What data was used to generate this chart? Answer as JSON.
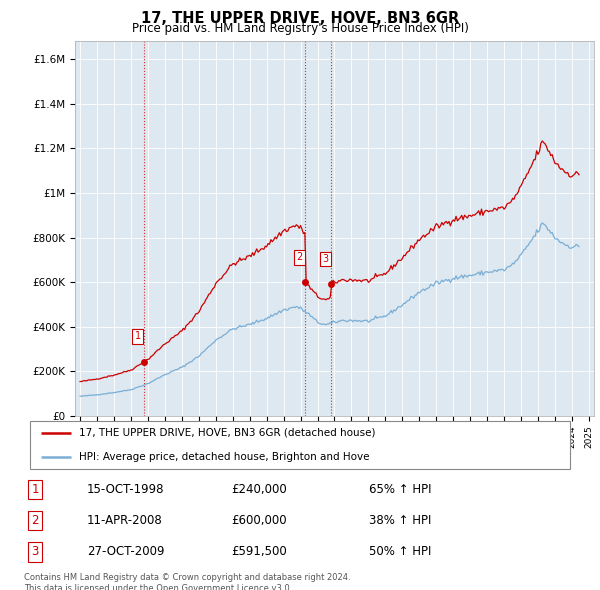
{
  "title": "17, THE UPPER DRIVE, HOVE, BN3 6GR",
  "subtitle": "Price paid vs. HM Land Registry's House Price Index (HPI)",
  "ylabel_ticks": [
    "£0",
    "£200K",
    "£400K",
    "£600K",
    "£800K",
    "£1M",
    "£1.2M",
    "£1.4M",
    "£1.6M"
  ],
  "ytick_values": [
    0,
    200000,
    400000,
    600000,
    800000,
    1000000,
    1200000,
    1400000,
    1600000
  ],
  "ylim": [
    0,
    1680000
  ],
  "xlim_start": 1994.7,
  "xlim_end": 2025.3,
  "transactions": [
    {
      "num": 1,
      "date_str": "15-OCT-1998",
      "price": 240000,
      "hpi_pct": "65% ↑ HPI",
      "x": 1998.79
    },
    {
      "num": 2,
      "date_str": "11-APR-2008",
      "price": 600000,
      "hpi_pct": "38% ↑ HPI",
      "x": 2008.28
    },
    {
      "num": 3,
      "date_str": "27-OCT-2009",
      "price": 591500,
      "hpi_pct": "50% ↑ HPI",
      "x": 2009.82
    }
  ],
  "vline_color": "#cc0000",
  "vline_style": ":",
  "marker_color": "#cc0000",
  "hpi_line_color": "#7aaed6",
  "price_line_color": "#cc0000",
  "legend_line1": "17, THE UPPER DRIVE, HOVE, BN3 6GR (detached house)",
  "legend_line2": "HPI: Average price, detached house, Brighton and Hove",
  "footnote": "Contains HM Land Registry data © Crown copyright and database right 2024.\nThis data is licensed under the Open Government Licence v3.0.",
  "bg_color": "#dde8f0"
}
